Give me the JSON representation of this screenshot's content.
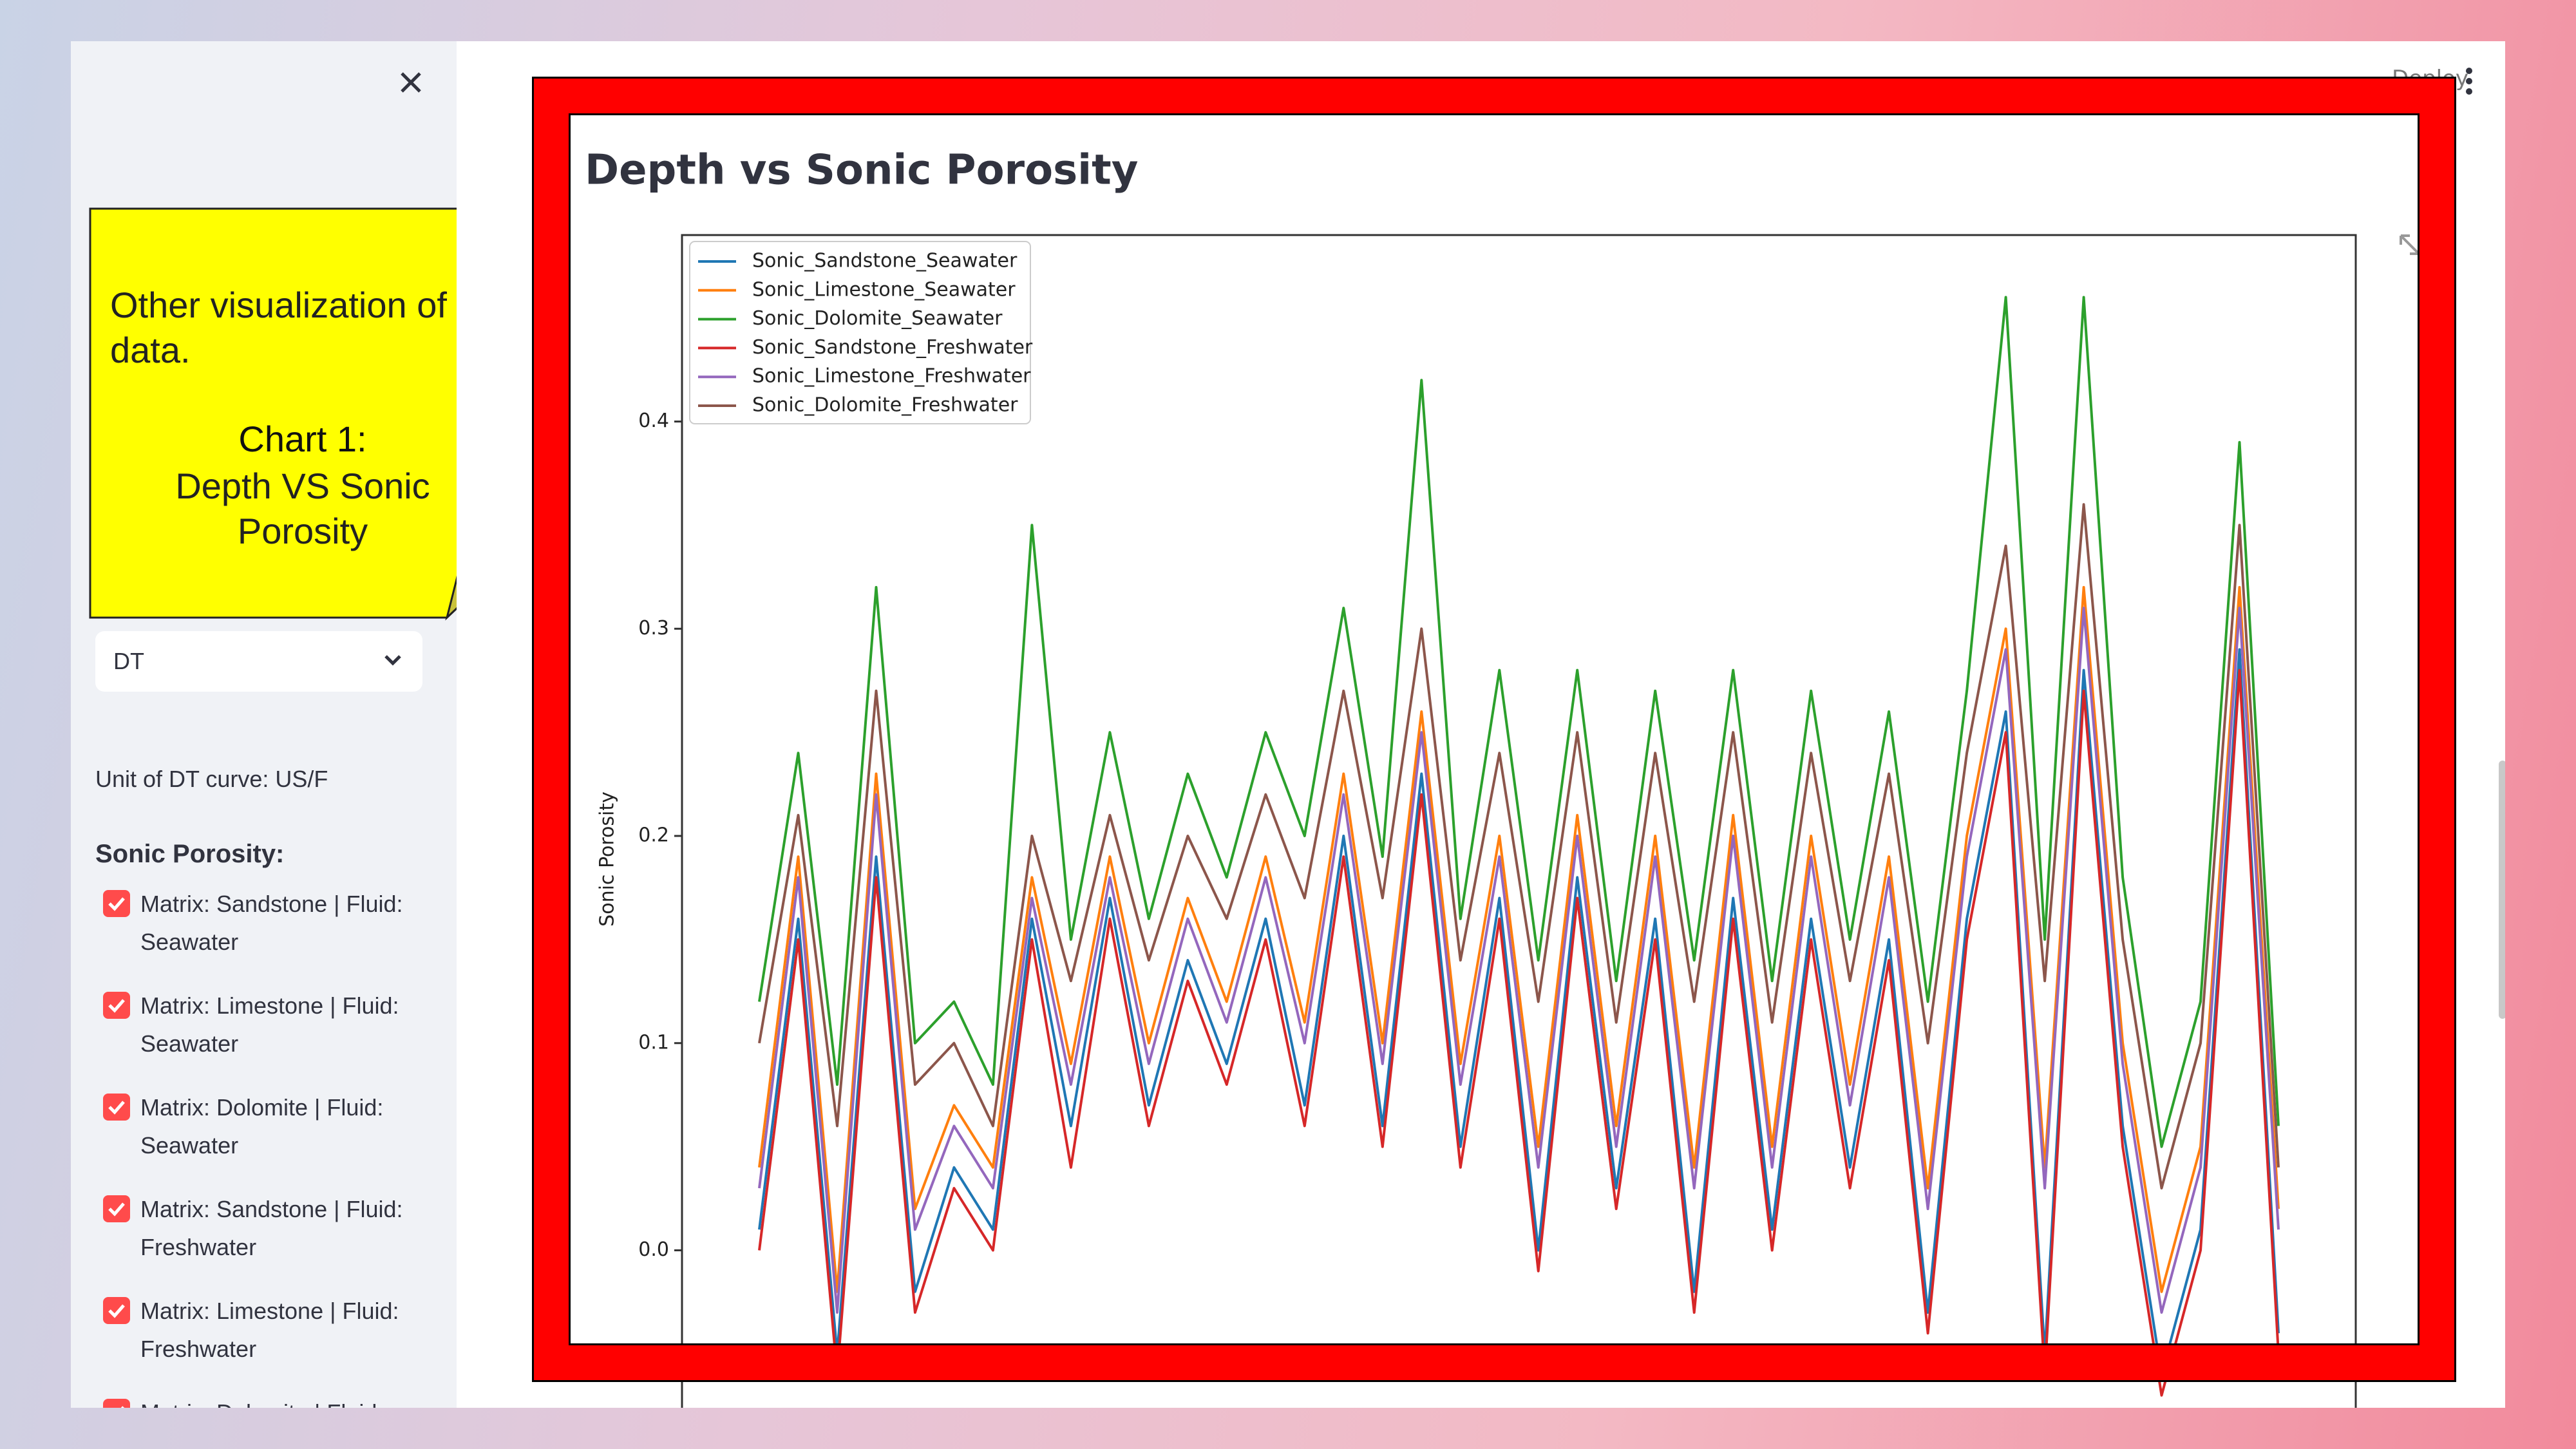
{
  "note": {
    "line1": "Other visualization of data.",
    "heading": "Chart 1:",
    "subheading": "Depth VS Sonic Porosity"
  },
  "sidebar": {
    "dropdown": "DT",
    "unit_text": "Unit of DT curve: US/F",
    "heading": "Sonic Porosity:",
    "checkboxes": [
      "Matrix: Sandstone | Fluid: Seawater",
      "Matrix: Limestone | Fluid: Seawater",
      "Matrix: Dolomite | Fluid: Seawater",
      "Matrix: Sandstone | Fluid: Freshwater",
      "Matrix: Limestone | Fluid: Freshwater",
      "Matrix: Dolomite | Fluid:"
    ]
  },
  "toolbar": {
    "deploy": "Deploy"
  },
  "chart_data": {
    "type": "line",
    "title": "Depth vs Sonic Porosity",
    "y_label": "Sonic Porosity",
    "ylim": [
      -0.076,
      0.49
    ],
    "yticks": [
      {
        "value": 0,
        "label": "0.0"
      },
      0.1,
      0.2,
      0.3,
      0.4
    ],
    "grid": false,
    "legend": "upper left",
    "series": [
      {
        "name": "Sonic_Sandstone_Seawater",
        "color": "#1f77b4",
        "values": [
          0.01,
          0.16,
          -0.05,
          0.19,
          -0.02,
          0.04,
          0.01,
          0.16,
          0.06,
          0.17,
          0.07,
          0.14,
          0.09,
          0.16,
          0.07,
          0.2,
          0.06,
          0.23,
          0.05,
          0.17,
          0.0,
          0.18,
          0.03,
          0.16,
          -0.02,
          0.17,
          0.01,
          0.16,
          0.04,
          0.15,
          -0.03,
          0.16,
          0.26,
          -0.05,
          0.28,
          0.06,
          -0.06,
          0.01,
          0.29,
          -0.04
        ]
      },
      {
        "name": "Sonic_Limestone_Seawater",
        "color": "#ff7f0e",
        "values": [
          0.04,
          0.19,
          -0.02,
          0.23,
          0.02,
          0.07,
          0.04,
          0.18,
          0.09,
          0.19,
          0.1,
          0.17,
          0.12,
          0.19,
          0.11,
          0.23,
          0.1,
          0.26,
          0.09,
          0.2,
          0.05,
          0.21,
          0.06,
          0.2,
          0.04,
          0.21,
          0.05,
          0.2,
          0.08,
          0.19,
          0.03,
          0.2,
          0.3,
          0.04,
          0.32,
          0.1,
          -0.02,
          0.05,
          0.32,
          0.02
        ]
      },
      {
        "name": "Sonic_Dolomite_Seawater",
        "color": "#2ca02c",
        "values": [
          0.12,
          0.24,
          0.08,
          0.32,
          0.1,
          0.12,
          0.08,
          0.35,
          0.15,
          0.25,
          0.16,
          0.23,
          0.18,
          0.25,
          0.2,
          0.31,
          0.19,
          0.42,
          0.16,
          0.28,
          0.14,
          0.28,
          0.13,
          0.27,
          0.14,
          0.28,
          0.13,
          0.27,
          0.15,
          0.26,
          0.12,
          0.27,
          0.46,
          0.15,
          0.46,
          0.18,
          0.05,
          0.12,
          0.39,
          0.06
        ]
      },
      {
        "name": "Sonic_Sandstone_Freshwater",
        "color": "#d62728",
        "values": [
          0.0,
          0.15,
          -0.06,
          0.18,
          -0.03,
          0.03,
          0.0,
          0.15,
          0.04,
          0.16,
          0.06,
          0.13,
          0.08,
          0.15,
          0.06,
          0.19,
          0.05,
          0.22,
          0.04,
          0.16,
          -0.01,
          0.17,
          0.02,
          0.15,
          -0.03,
          0.16,
          0.0,
          0.15,
          0.03,
          0.14,
          -0.04,
          0.15,
          0.25,
          -0.06,
          0.27,
          0.05,
          -0.07,
          0.0,
          0.28,
          -0.05
        ]
      },
      {
        "name": "Sonic_Limestone_Freshwater",
        "color": "#9467bd",
        "values": [
          0.03,
          0.18,
          -0.03,
          0.22,
          0.01,
          0.06,
          0.03,
          0.17,
          0.08,
          0.18,
          0.09,
          0.16,
          0.11,
          0.18,
          0.1,
          0.22,
          0.09,
          0.25,
          0.08,
          0.19,
          0.04,
          0.2,
          0.05,
          0.19,
          0.03,
          0.2,
          0.04,
          0.19,
          0.07,
          0.18,
          0.02,
          0.19,
          0.29,
          0.03,
          0.31,
          0.09,
          -0.03,
          0.04,
          0.31,
          0.01
        ]
      },
      {
        "name": "Sonic_Dolomite_Freshwater",
        "color": "#8c564b",
        "values": [
          0.1,
          0.21,
          0.06,
          0.27,
          0.08,
          0.1,
          0.06,
          0.2,
          0.13,
          0.21,
          0.14,
          0.2,
          0.16,
          0.22,
          0.17,
          0.27,
          0.17,
          0.3,
          0.14,
          0.24,
          0.12,
          0.25,
          0.11,
          0.24,
          0.12,
          0.25,
          0.11,
          0.24,
          0.13,
          0.23,
          0.1,
          0.24,
          0.34,
          0.13,
          0.36,
          0.15,
          0.03,
          0.1,
          0.35,
          0.04
        ]
      }
    ]
  }
}
